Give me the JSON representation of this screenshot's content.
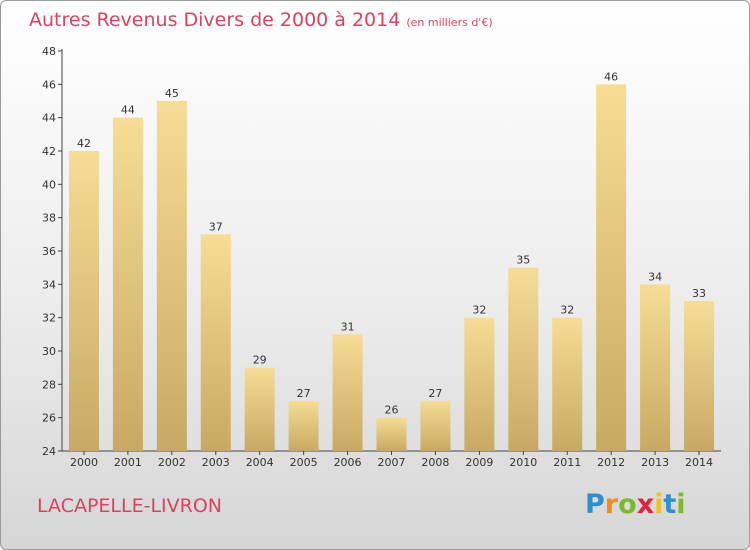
{
  "header": {
    "title": "Autres Revenus Divers de 2000 à 2014",
    "unit": "(en milliers d'€)"
  },
  "footer": {
    "place": "LACAPELLE-LIVRON",
    "logo": {
      "letters": [
        "P",
        "r",
        "o",
        "x",
        "i",
        "t",
        "i"
      ],
      "colors": [
        "#2e8fce",
        "#f28c1c",
        "#7bb928",
        "#e2243a",
        "#f2c21b",
        "#2e8fce",
        "#7bb928"
      ]
    }
  },
  "colors": {
    "bar_top": "#f6dc94",
    "bar_bottom": "#c8a963",
    "title": "#d8435f"
  },
  "chart_data": {
    "type": "bar",
    "categories": [
      "2000",
      "2001",
      "2002",
      "2003",
      "2004",
      "2005",
      "2006",
      "2007",
      "2008",
      "2009",
      "2010",
      "2011",
      "2012",
      "2013",
      "2014"
    ],
    "values": [
      42,
      44,
      45,
      37,
      29,
      27,
      31,
      26,
      27,
      32,
      35,
      32,
      46,
      34,
      33
    ],
    "title": "Autres Revenus Divers de 2000 à 2014",
    "xlabel": "",
    "ylabel": "",
    "ylim": [
      24,
      48
    ],
    "yticks": [
      24,
      26,
      28,
      30,
      32,
      34,
      36,
      38,
      40,
      42,
      44,
      46,
      48
    ],
    "grid": false,
    "legend": "none"
  }
}
